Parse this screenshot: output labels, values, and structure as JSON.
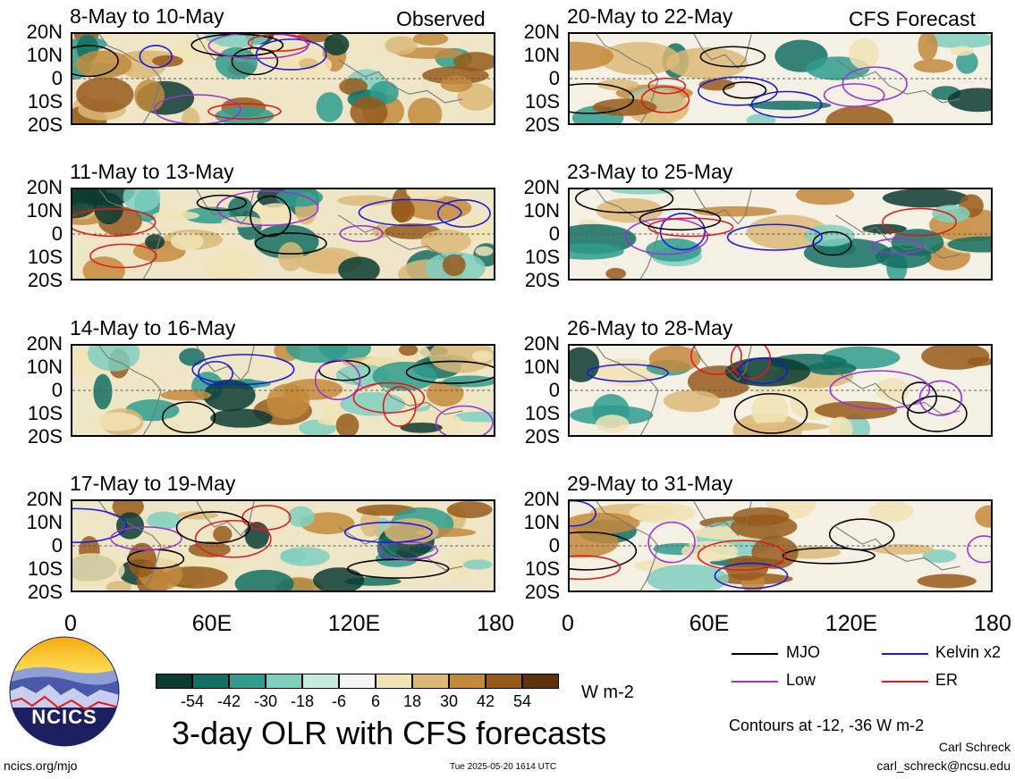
{
  "header": {
    "observed_label": "Observed",
    "forecast_label": "CFS Forecast"
  },
  "panels": [
    {
      "title": "8-May to 10-May"
    },
    {
      "title": "11-May to 13-May"
    },
    {
      "title": "14-May to 16-May"
    },
    {
      "title": "17-May to 19-May"
    },
    {
      "title": "20-May to 22-May"
    },
    {
      "title": "23-May to 25-May"
    },
    {
      "title": "26-May to 28-May"
    },
    {
      "title": "29-May to 31-May"
    }
  ],
  "y_ticks": [
    "20N",
    "10N",
    "0",
    "10S",
    "20S"
  ],
  "x_ticks": [
    "0",
    "60E",
    "120E",
    "180"
  ],
  "colorbar": {
    "ticks": [
      "-54",
      "-42",
      "-30",
      "-18",
      "-6",
      "6",
      "18",
      "30",
      "42",
      "54"
    ],
    "colors": [
      "#0b3b33",
      "#136f63",
      "#2f9c8d",
      "#7fcfbf",
      "#c7ebe1",
      "#f5f5f5",
      "#f1e3b5",
      "#dcb878",
      "#c38a3c",
      "#965a1b",
      "#5e3309"
    ],
    "unit": "W m-2"
  },
  "legend": {
    "items": [
      {
        "label": "MJO",
        "color": "#000000"
      },
      {
        "label": "Kelvin x2",
        "color": "#1a1ad6"
      },
      {
        "label": "Low",
        "color": "#9a33d6"
      },
      {
        "label": "ER",
        "color": "#e01a1a"
      }
    ],
    "contour_note": "Contours at -12, -36 W m-2"
  },
  "footer": {
    "main_title": "3-day OLR with CFS forecasts",
    "website": "ncics.org/mjo",
    "timestamp": "Tue 2025-05-20 1614 UTC",
    "author": "Carl Schreck",
    "email": "carl_schreck@ncsu.edu",
    "logo_text": "NCICS"
  },
  "chart_data": {
    "type": "heatmap",
    "title": "3-day OLR with CFS forecasts",
    "variable": "OLR anomaly",
    "unit": "W m-2",
    "x_range": [
      0,
      180
    ],
    "y_range": [
      -20,
      20
    ],
    "x_ticks": [
      "0",
      "60E",
      "120E",
      "180"
    ],
    "y_ticks": [
      "20N",
      "10N",
      "0",
      "10S",
      "20S"
    ],
    "color_levels": [
      -54,
      -42,
      -30,
      -18,
      -6,
      6,
      18,
      30,
      42,
      54
    ],
    "contour_levels": [
      -12,
      -36
    ],
    "contour_series": [
      "MJO",
      "Kelvin x2",
      "Low",
      "ER"
    ],
    "panels": [
      "8-May to 10-May",
      "11-May to 13-May",
      "14-May to 16-May",
      "17-May to 19-May",
      "20-May to 22-May",
      "23-May to 25-May",
      "26-May to 28-May",
      "29-May to 31-May"
    ],
    "observed_panels": [
      "8-May to 10-May",
      "11-May to 13-May",
      "14-May to 16-May",
      "17-May to 19-May"
    ],
    "forecast_panels": [
      "20-May to 22-May",
      "23-May to 25-May",
      "26-May to 28-May",
      "29-May to 31-May"
    ]
  }
}
